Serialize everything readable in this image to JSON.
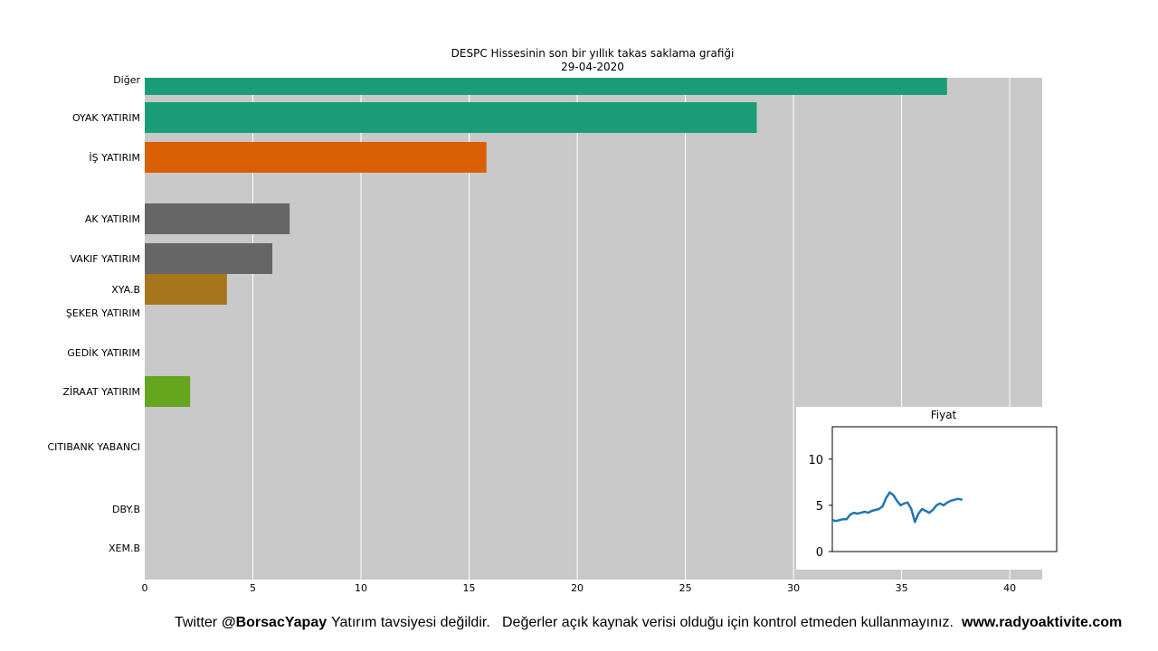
{
  "chart_data": [
    {
      "type": "bar",
      "orientation": "horizontal",
      "title": "DESPC Hissesinin son bir yıllık takas saklama grafiği",
      "subtitle": "29-04-2020",
      "xlabel": "",
      "ylabel": "",
      "xlim": [
        0,
        41.5
      ],
      "xticks": [
        0,
        5,
        10,
        15,
        20,
        25,
        30,
        35,
        40
      ],
      "grid": "vertical",
      "background": "#c9c9c9",
      "bars": [
        {
          "label": "Diğer",
          "value": 37.1,
          "color": "#1b9e77"
        },
        {
          "label": "OYAK YATIRIM",
          "value": 28.3,
          "color": "#1b9e77"
        },
        {
          "label": "İŞ YATIRIM",
          "value": 15.8,
          "color": "#d95f02"
        },
        {
          "label": "AK YATIRIM",
          "value": 6.7,
          "color": "#666666"
        },
        {
          "label": "VAKIF YATIRIM",
          "value": 5.9,
          "color": "#666666"
        },
        {
          "label": "XYA.B",
          "value": 3.8,
          "color": "#a6761d"
        },
        {
          "label": "ŞEKER YATIRIM",
          "value": 0,
          "color": "#666666"
        },
        {
          "label": "GEDİK YATIRIM",
          "value": 0,
          "color": "#666666"
        },
        {
          "label": "ZİRAAT YATIRIM",
          "value": 2.1,
          "color": "#66a61e"
        },
        {
          "label": "CITIBANK YABANCI",
          "value": 0,
          "color": "#666666"
        },
        {
          "label": "DBY.B",
          "value": 0,
          "color": "#666666"
        },
        {
          "label": "XEM.B",
          "value": 0,
          "color": "#666666"
        }
      ]
    },
    {
      "type": "line",
      "title": "Fiyat",
      "ylim": [
        0,
        13.5
      ],
      "yticks": [
        0,
        5,
        10
      ],
      "xlim": [
        0,
        500
      ],
      "color": "#1f77b4",
      "series": [
        {
          "x": [
            0,
            8,
            16,
            24,
            32,
            40,
            48,
            56,
            64,
            72,
            80,
            88,
            96,
            104,
            112,
            120,
            128,
            136,
            144,
            152,
            160,
            168,
            176,
            184,
            192,
            200,
            208,
            216,
            224,
            232,
            240,
            248,
            256,
            264,
            272,
            280,
            290
          ],
          "values": [
            3.4,
            3.3,
            3.4,
            3.5,
            3.5,
            4.0,
            4.2,
            4.1,
            4.2,
            4.3,
            4.2,
            4.4,
            4.5,
            4.6,
            4.9,
            5.8,
            6.4,
            6.1,
            5.5,
            5.0,
            5.2,
            5.3,
            4.6,
            3.2,
            4.1,
            4.6,
            4.4,
            4.2,
            4.5,
            5.0,
            5.2,
            5.0,
            5.3,
            5.5,
            5.6,
            5.7,
            5.6
          ]
        }
      ]
    }
  ],
  "footer": {
    "twitter_prefix": "Twitter",
    "handle": "@BorsacYapay",
    "disclaimer1": "Yatırım tavsiyesi değildir.",
    "disclaimer2": "Değerler açık kaynak verisi olduğu için kontrol etmeden kullanmayınız.",
    "website": "www.radyoaktivite.com"
  }
}
